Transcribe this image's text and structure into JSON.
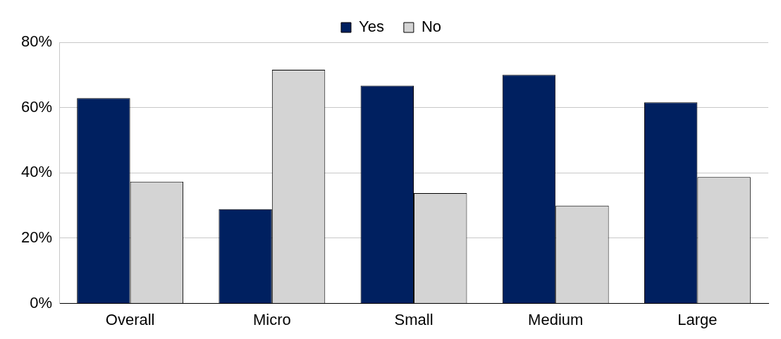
{
  "chart_data": {
    "type": "bar",
    "categories": [
      "Overall",
      "Micro",
      "Small",
      "Medium",
      "Large"
    ],
    "series": [
      {
        "name": "Yes",
        "color": "#002060",
        "values": [
          62.9,
          28.9,
          66.7,
          70.0,
          61.6
        ]
      },
      {
        "name": "No",
        "color": "#d4d4d4",
        "values": [
          37.3,
          71.6,
          33.8,
          30.0,
          38.7
        ]
      }
    ],
    "ylim": [
      0,
      80
    ],
    "yticks": [
      {
        "value": 0,
        "label": "0%"
      },
      {
        "value": 20,
        "label": "20%"
      },
      {
        "value": 40,
        "label": "40%"
      },
      {
        "value": 60,
        "label": "60%"
      },
      {
        "value": 80,
        "label": "80%"
      }
    ],
    "grid": "y",
    "legend": "top"
  }
}
